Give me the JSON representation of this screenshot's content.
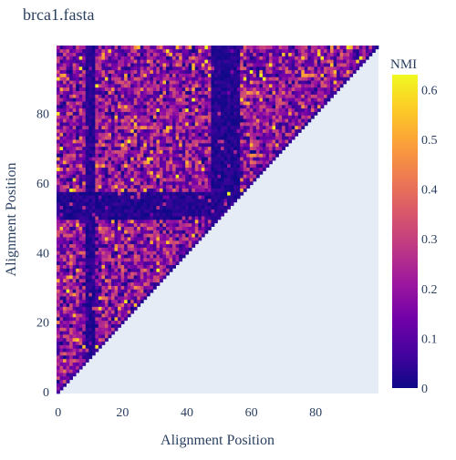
{
  "chart_data": {
    "type": "heatmap",
    "title": "brca1.fasta",
    "xlabel": "Alignment Position",
    "ylabel": "Alignment Position",
    "colorbar_title": "NMI",
    "n": 100,
    "x_range": [
      0,
      99
    ],
    "y_range": [
      0,
      99
    ],
    "x_ticks": [
      0,
      20,
      40,
      60,
      80
    ],
    "y_ticks": [
      0,
      20,
      40,
      60,
      80
    ],
    "colorbar_range": [
      0,
      0.63
    ],
    "colorbar_ticks": [
      0,
      0.1,
      0.2,
      0.3,
      0.4,
      0.5,
      0.6
    ],
    "colorscale": "Plasma",
    "mask": "lower-triangle (row >= column) shown; upper triangle empty",
    "low_value_bands": {
      "rows": [
        [
          50,
          57
        ]
      ],
      "columns": [
        [
          9,
          11
        ],
        [
          48,
          56
        ]
      ]
    },
    "typical_value_range": [
      0.05,
      0.35
    ],
    "peak_value": 0.63,
    "plot_background": "#e5ecf6"
  }
}
